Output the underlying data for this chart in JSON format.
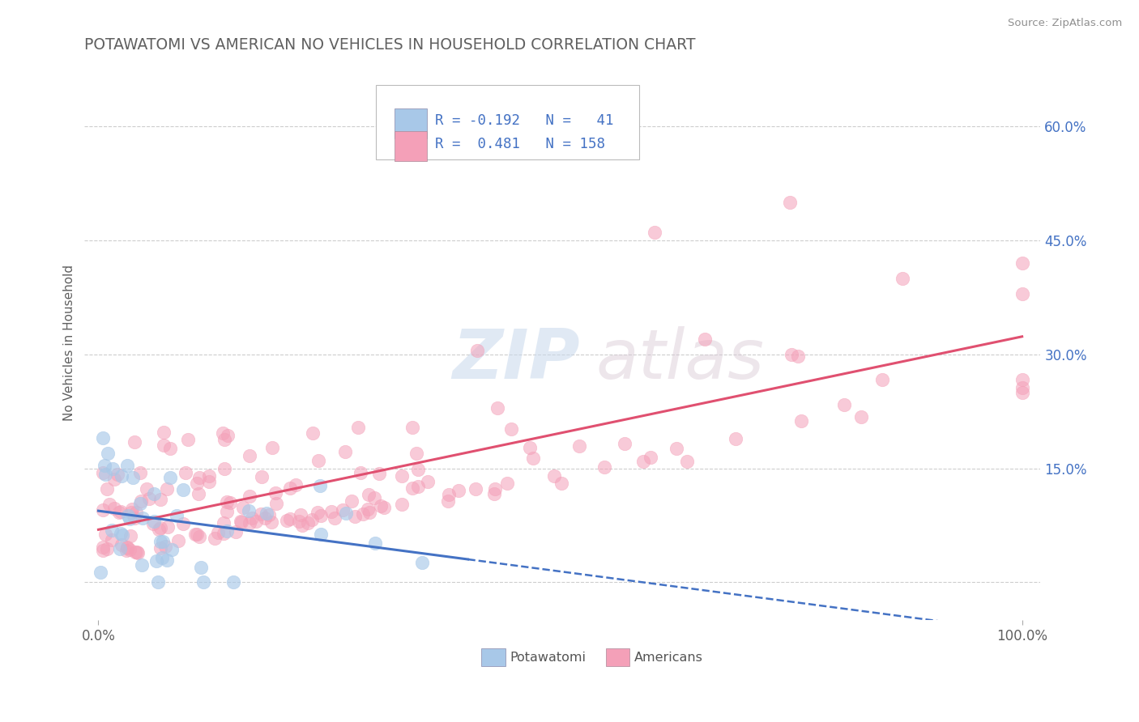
{
  "title": "POTAWATOMI VS AMERICAN NO VEHICLES IN HOUSEHOLD CORRELATION CHART",
  "source": "Source: ZipAtlas.com",
  "ylabel": "No Vehicles in Household",
  "watermark_zip": "ZIP",
  "watermark_atlas": "atlas",
  "potawatomi_color": "#a8c8e8",
  "american_color": "#f4a0b8",
  "trend_blue": "#4472c4",
  "trend_pink": "#e05070",
  "background": "#ffffff",
  "grid_color": "#c8c8c8",
  "title_color": "#606060",
  "legend_text_color": "#4472c4",
  "right_tick_color": "#4472c4",
  "source_color": "#909090",
  "xlabel_color": "#606060",
  "ylabel_color": "#606060"
}
